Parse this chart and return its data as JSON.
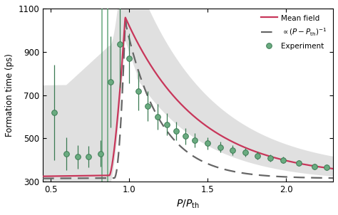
{
  "title": "",
  "xlabel": "$P/P_{\\mathrm{th}}$",
  "ylabel": "Formation time (ps)",
  "xlim": [
    0.45,
    2.3
  ],
  "ylim": [
    300,
    1100
  ],
  "yticks": [
    300,
    500,
    700,
    900,
    1100
  ],
  "xticks": [
    0.5,
    1.0,
    1.5,
    2.0
  ],
  "mean_field_color": "#c8365a",
  "dashed_color": "#666666",
  "shading_color": "#c8c8c8",
  "experiment_facecolor": "#6aab80",
  "experiment_edgecolor": "#3a7a52",
  "vertical_line_color": "#4d9966",
  "bg_color": "#ffffff",
  "legend_labels": [
    "Mean field",
    "$\\propto (P-P_{\\mathrm{th}})^{-1}$",
    "Experiment"
  ],
  "exp_x": [
    0.52,
    0.6,
    0.67,
    0.74,
    0.82,
    0.88,
    0.94,
    1.0,
    1.06,
    1.12,
    1.18,
    1.24,
    1.3,
    1.36,
    1.42,
    1.5,
    1.58,
    1.66,
    1.74,
    1.82,
    1.9,
    1.98,
    2.08,
    2.18,
    2.26
  ],
  "exp_y": [
    620,
    430,
    415,
    415,
    430,
    760,
    935,
    870,
    720,
    650,
    600,
    565,
    535,
    510,
    490,
    478,
    460,
    445,
    435,
    420,
    410,
    400,
    385,
    370,
    365
  ],
  "exp_yerr_low": [
    220,
    75,
    55,
    50,
    60,
    210,
    200,
    115,
    90,
    70,
    60,
    50,
    42,
    38,
    33,
    28,
    25,
    22,
    20,
    18,
    17,
    15,
    13,
    12,
    11
  ],
  "exp_yerr_high": [
    220,
    75,
    55,
    50,
    60,
    210,
    200,
    115,
    90,
    70,
    60,
    50,
    42,
    38,
    33,
    28,
    25,
    22,
    20,
    18,
    17,
    15,
    13,
    12,
    11
  ],
  "vlines": [
    0.825,
    0.862
  ]
}
